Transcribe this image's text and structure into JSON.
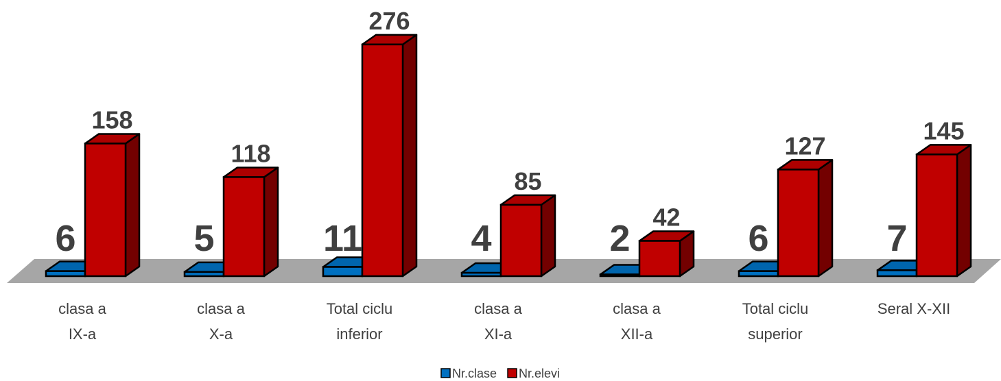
{
  "chart_data": {
    "type": "bar3d",
    "categories": [
      "clasa a IX-a",
      "clasa a X-a",
      "Total ciclu inferior",
      "clasa a XI-a",
      "clasa a XII-a",
      "Total ciclu superior",
      "Seral X-XII"
    ],
    "series": [
      {
        "name": "Nr.clase",
        "color": "#0070c0",
        "values": [
          6,
          5,
          11,
          4,
          2,
          6,
          7
        ]
      },
      {
        "name": "Nr.elevi",
        "color": "#c00000",
        "values": [
          158,
          118,
          276,
          85,
          42,
          127,
          145
        ]
      }
    ],
    "legend": "bottom"
  }
}
